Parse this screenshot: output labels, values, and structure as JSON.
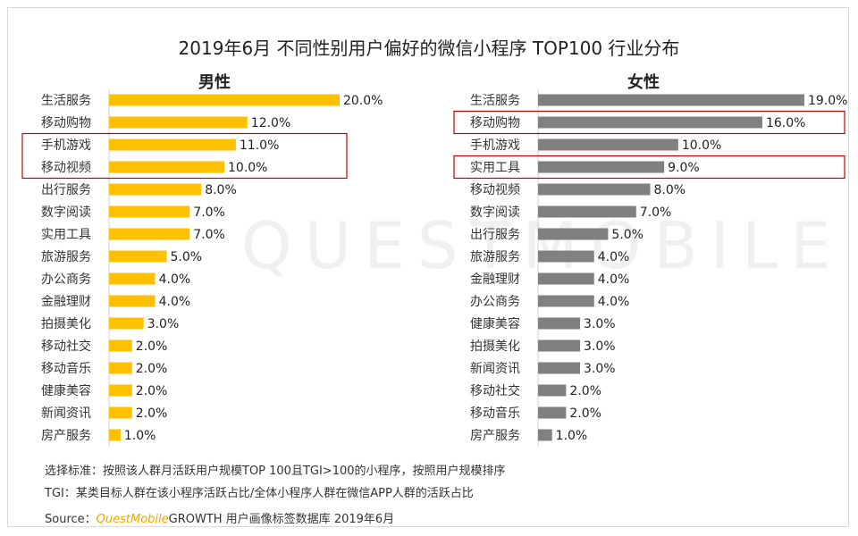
{
  "title": "2019年6月 不同性别用户偏好的微信小程序 TOP100 行业分布",
  "watermark": "QUESTMOBILE",
  "colors": {
    "male": "#ffc000",
    "female": "#808080",
    "highlight": "#c00000"
  },
  "chart_data": [
    {
      "type": "bar",
      "orientation": "horizontal",
      "title": "男性",
      "categories": [
        "生活服务",
        "移动购物",
        "手机游戏",
        "移动视频",
        "出行服务",
        "数字阅读",
        "实用工具",
        "旅游服务",
        "办公商务",
        "金融理财",
        "拍摄美化",
        "移动社交",
        "移动音乐",
        "健康美容",
        "新闻资讯",
        "房产服务"
      ],
      "values": [
        20.0,
        12.0,
        11.0,
        10.0,
        8.0,
        7.0,
        7.0,
        5.0,
        4.0,
        4.0,
        3.0,
        2.0,
        2.0,
        2.0,
        2.0,
        1.0
      ],
      "value_labels": [
        "20.0%",
        "12.0%",
        "11.0%",
        "10.0%",
        "8.0%",
        "7.0%",
        "7.0%",
        "5.0%",
        "4.0%",
        "4.0%",
        "3.0%",
        "2.0%",
        "2.0%",
        "2.0%",
        "2.0%",
        "1.0%"
      ],
      "highlighted": [
        "手机游戏",
        "移动视频"
      ],
      "xlim": [
        0,
        20
      ]
    },
    {
      "type": "bar",
      "orientation": "horizontal",
      "title": "女性",
      "categories": [
        "生活服务",
        "移动购物",
        "手机游戏",
        "实用工具",
        "移动视频",
        "数字阅读",
        "出行服务",
        "旅游服务",
        "金融理财",
        "办公商务",
        "健康美容",
        "拍摄美化",
        "新闻资讯",
        "移动社交",
        "移动音乐",
        "房产服务"
      ],
      "values": [
        19.0,
        16.0,
        10.0,
        9.0,
        8.0,
        7.0,
        5.0,
        4.0,
        4.0,
        4.0,
        3.0,
        3.0,
        3.0,
        2.0,
        2.0,
        1.0
      ],
      "value_labels": [
        "19.0%",
        "16.0%",
        "10.0%",
        "9.0%",
        "8.0%",
        "7.0%",
        "5.0%",
        "4.0%",
        "4.0%",
        "4.0%",
        "3.0%",
        "3.0%",
        "3.0%",
        "2.0%",
        "2.0%",
        "1.0%"
      ],
      "highlighted": [
        "移动购物",
        "实用工具"
      ],
      "xlim": [
        0,
        19
      ]
    }
  ],
  "notes": {
    "criteria": "选择标准：按照该人群月活跃用户规模TOP 100且TGI>100的小程序，按照用户规模排序",
    "tgi": "TGI：某类目标人群在该小程序活跃占比/全体小程序人群在微信APP人群的活跃占比",
    "source_prefix": "Source：",
    "source_brand": "QuestMobile",
    "source_rest": "GROWTH 用户画像标签数据库  2019年6月"
  }
}
